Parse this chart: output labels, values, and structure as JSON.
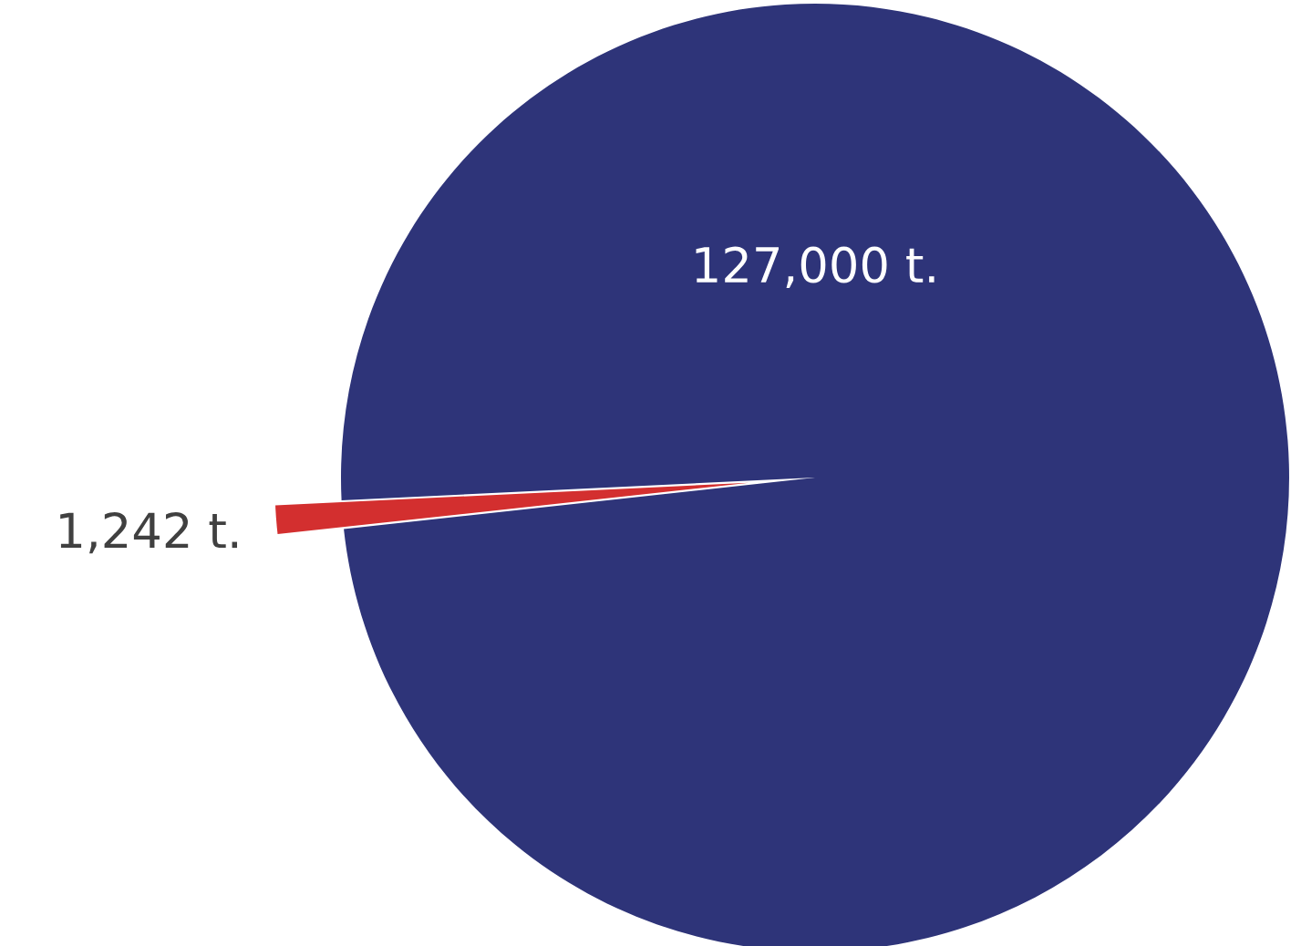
{
  "chart_data": {
    "type": "pie",
    "categories": [
      null,
      null
    ],
    "values": [
      127000,
      1242
    ],
    "colors": [
      "#2e3479",
      "#d32f2f"
    ],
    "value_labels": [
      "127,000 t.",
      "1,242 t."
    ]
  }
}
